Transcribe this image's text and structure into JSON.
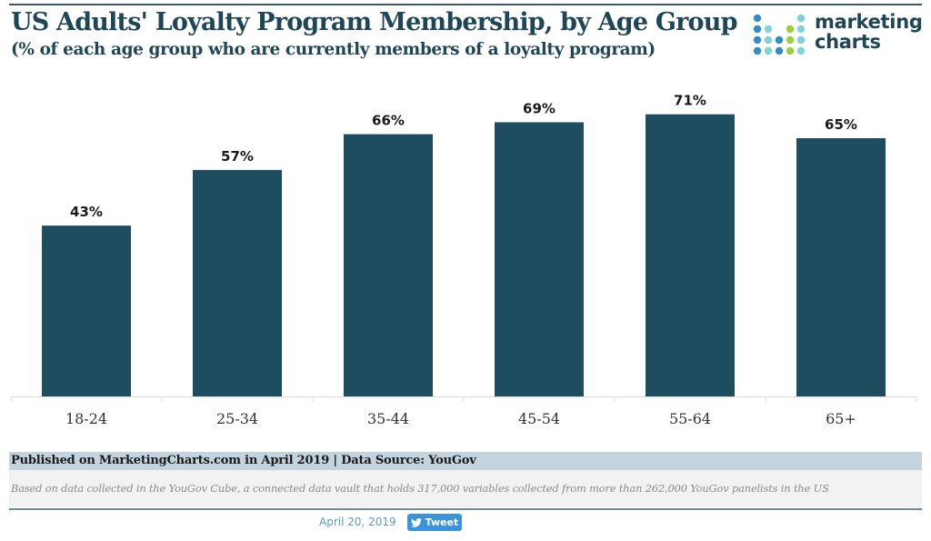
{
  "header": {
    "title": "US Adults' Loyalty Program Membership, by Age Group",
    "subtitle": "(% of each age group who are currently members of a loyalty program)"
  },
  "logo": {
    "line1": "marketing",
    "line2": "charts",
    "dot_colors": {
      "blue": "#2f8fc4",
      "teal": "#7fd3d8",
      "green": "#9ccf3c"
    }
  },
  "colors": {
    "bar": "#1f4d60",
    "title": "#1f4656",
    "footer_band": "#c3d4df"
  },
  "chart_data": {
    "type": "bar",
    "title": "US Adults' Loyalty Program Membership, by Age Group",
    "subtitle": "(% of each age group who are currently members of a loyalty program)",
    "xlabel": "",
    "ylabel": "",
    "categories": [
      "18-24",
      "25-34",
      "35-44",
      "45-54",
      "55-64",
      "65+"
    ],
    "values": [
      43,
      57,
      66,
      69,
      71,
      65
    ],
    "data_labels": [
      "43%",
      "57%",
      "66%",
      "69%",
      "71%",
      "65%"
    ],
    "unit": "%",
    "ylim": [
      0,
      80
    ],
    "grid": false,
    "legend": "none"
  },
  "footer": {
    "published": "Published on MarketingCharts.com in April 2019 | Data Source: YouGov",
    "note": "Based on data collected in the YouGov Cube, a connected data vault that holds 317,000 variables collected from more than 262,000 YouGov panelists in the US"
  },
  "social": {
    "date": "April 20, 2019",
    "tweet_label": "Tweet",
    "tweet_icon": "twitter-bird-icon"
  }
}
